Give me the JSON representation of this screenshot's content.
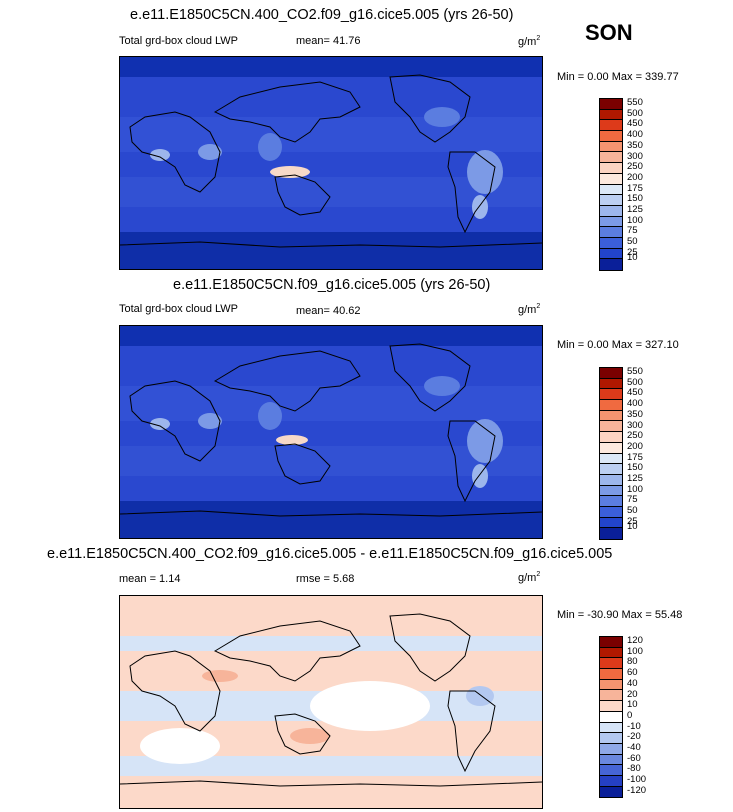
{
  "season": "SON",
  "panels": [
    {
      "title": "e.e11.E1850C5CN.400_CO2.f09_g16.cice5.005 (yrs 26-50)",
      "left_label": "Total grd-box cloud LWP",
      "center_label": "mean=  41.76",
      "units": "g/m",
      "units_sup": "2",
      "minmax": "Min =   0.00 Max = 339.77",
      "levels": [
        "550",
        "500",
        "450",
        "400",
        "350",
        "300",
        "250",
        "200",
        "175",
        "150",
        "125",
        "100",
        "75",
        "50",
        "25",
        "10"
      ]
    },
    {
      "title": "e.e11.E1850C5CN.f09_g16.cice5.005 (yrs 26-50)",
      "left_label": "Total grd-box cloud LWP",
      "center_label": "mean=  40.62",
      "units": "g/m",
      "units_sup": "2",
      "minmax": "Min =   0.00 Max = 327.10",
      "levels": [
        "550",
        "500",
        "450",
        "400",
        "350",
        "300",
        "250",
        "200",
        "175",
        "150",
        "125",
        "100",
        "75",
        "50",
        "25",
        "10"
      ]
    },
    {
      "title": "e.e11.E1850C5CN.400_CO2.f09_g16.cice5.005 - e.e11.E1850C5CN.f09_g16.cice5.005",
      "left_label": "mean =   1.14",
      "center_label": "rmse =   5.68",
      "units": "g/m",
      "units_sup": "2",
      "minmax": "Min = -30.90 Max =  55.48",
      "levels": [
        "120",
        "100",
        "80",
        "60",
        "40",
        "20",
        "10",
        "0",
        "-10",
        "-20",
        "-40",
        "-60",
        "-80",
        "-100",
        "-120"
      ]
    }
  ],
  "colors": {
    "abs_scale": [
      "#7a0000",
      "#b01800",
      "#dd3a1a",
      "#f06a40",
      "#f59470",
      "#f7b49a",
      "#fcd4c2",
      "#fde9de",
      "#dce8f7",
      "#bccff2",
      "#9db6ec",
      "#7c9ae6",
      "#5b7de0",
      "#3b5fda",
      "#2244cc",
      "#0a1f99"
    ],
    "diff_scale": [
      "#7a0000",
      "#b01800",
      "#dd3a1a",
      "#f06a40",
      "#f59470",
      "#f7b49a",
      "#fcd9c9",
      "#ffffff",
      "#d6e4f7",
      "#b3c8f0",
      "#8fa9e8",
      "#6a88df",
      "#4665d6",
      "#2540c4",
      "#0a1f99"
    ]
  }
}
